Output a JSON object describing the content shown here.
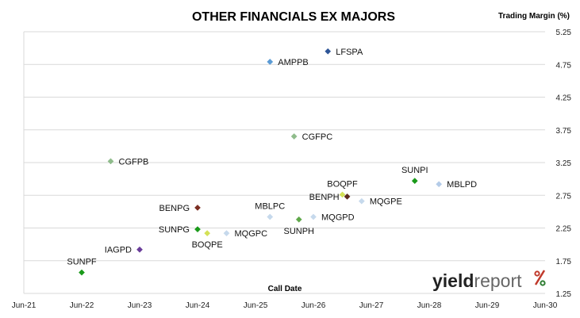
{
  "chart_data": {
    "type": "scatter",
    "title": "OTHER FINANCIALS EX MAJORS",
    "xlabel": "Call Date",
    "ylabel": "Trading Margin (%)",
    "xlim": [
      "2021-06",
      "2030-06"
    ],
    "ylim": [
      1.25,
      5.25
    ],
    "x_ticks": [
      "Jun-21",
      "Jun-22",
      "Jun-23",
      "Jun-24",
      "Jun-25",
      "Jun-26",
      "Jun-27",
      "Jun-28",
      "Jun-29",
      "Jun-30"
    ],
    "y_ticks": [
      "5.25",
      "4.75",
      "4.25",
      "3.75",
      "3.25",
      "2.75",
      "2.25",
      "1.75",
      "1.25"
    ],
    "grid": "horizontal",
    "legend": "none",
    "points": [
      {
        "label": "LFSPA",
        "x": "2026-09",
        "y": 4.95,
        "color": "#2e5597",
        "label_side": "right"
      },
      {
        "label": "AMPPB",
        "x": "2025-09",
        "y": 4.79,
        "color": "#5b9bd5",
        "label_side": "right"
      },
      {
        "label": "CGFPC",
        "x": "2026-02",
        "y": 3.65,
        "color": "#8fbc8b",
        "label_side": "right"
      },
      {
        "label": "CGFPB",
        "x": "2022-12",
        "y": 3.27,
        "color": "#8fbc8b",
        "label_side": "right"
      },
      {
        "label": "SUNPI",
        "x": "2028-03",
        "y": 2.97,
        "color": "#1a9a1a",
        "label_side": "above"
      },
      {
        "label": "MBLPD",
        "x": "2028-08",
        "y": 2.92,
        "color": "#b4cbe8",
        "label_side": "right"
      },
      {
        "label": "BOQPF",
        "x": "2026-12",
        "y": 2.76,
        "color": "#d4e157",
        "label_side": "above"
      },
      {
        "label": "BENPH",
        "x": "2027-01",
        "y": 2.73,
        "color": "#5c2a1e",
        "label_side": "left"
      },
      {
        "label": "MQGPE",
        "x": "2027-04",
        "y": 2.66,
        "color": "#c6d9ec",
        "label_side": "right"
      },
      {
        "label": "BENPG",
        "x": "2024-06",
        "y": 2.56,
        "color": "#7b2e22",
        "label_side": "left"
      },
      {
        "label": "MBLPC",
        "x": "2025-09",
        "y": 2.42,
        "color": "#c6d9ec",
        "label_side": "above"
      },
      {
        "label": "MQGPD",
        "x": "2026-06",
        "y": 2.42,
        "color": "#c6d9ec",
        "label_side": "right"
      },
      {
        "label": "SUNPH",
        "x": "2026-03",
        "y": 2.38,
        "color": "#5fa84a",
        "label_side": "below"
      },
      {
        "label": "SUNPG",
        "x": "2024-06",
        "y": 2.23,
        "color": "#1a9a1a",
        "label_side": "left"
      },
      {
        "label": "BOQPE",
        "x": "2024-08",
        "y": 2.17,
        "color": "#d4e157",
        "label_side": "below"
      },
      {
        "label": "MQGPC",
        "x": "2024-12",
        "y": 2.17,
        "color": "#c6d9ec",
        "label_side": "right"
      },
      {
        "label": "IAGPD",
        "x": "2023-06",
        "y": 1.92,
        "color": "#6a3d9a",
        "label_side": "left"
      },
      {
        "label": "SUNPF",
        "x": "2022-06",
        "y": 1.57,
        "color": "#1a9a1a",
        "label_side": "above"
      }
    ]
  },
  "logo": {
    "part1": "yield",
    "part2": "report",
    "symbol": "%",
    "colors": {
      "dark": "#222222",
      "gray": "#666666",
      "pct_top": "#c0392b",
      "pct_bottom": "#2e7d32"
    }
  }
}
